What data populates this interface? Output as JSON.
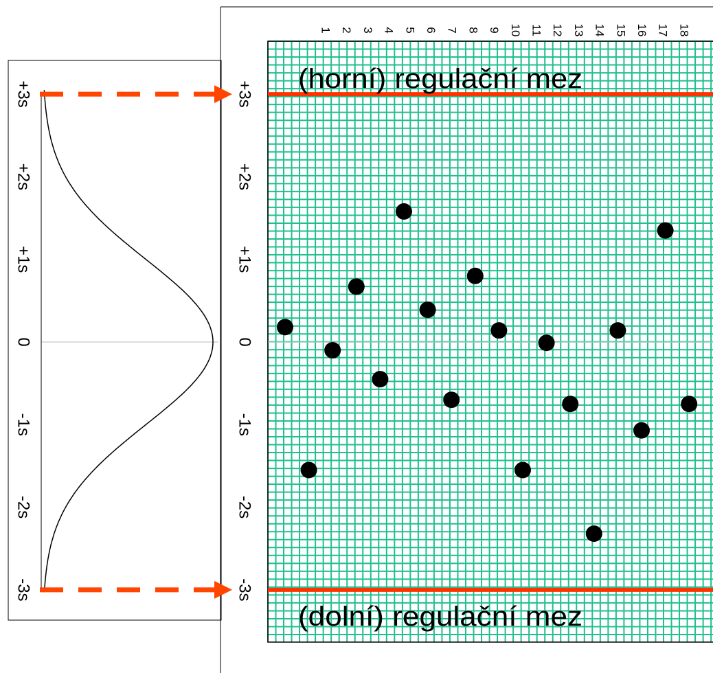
{
  "colors": {
    "grid": "#1fbf8f",
    "limit": "#ff3300",
    "arrow": "#ff4500",
    "point": "#000000",
    "curve": "#000000",
    "frame": "#000000"
  },
  "chart_data": [
    {
      "type": "scatter",
      "description_none": "",
      "x_tick_labels": [
        "1",
        "2",
        "3",
        "4",
        "5",
        "6",
        "7",
        "8",
        "9",
        "10",
        "11",
        "12",
        "13",
        "14",
        "15",
        "16",
        "17",
        "18"
      ],
      "y_tick_labels": [
        "+3s",
        "+2s",
        "+1s",
        "0",
        "-1s",
        "-2s",
        "-3s"
      ],
      "y_tick_values": [
        3,
        2,
        1,
        0,
        -1,
        -2,
        -3
      ],
      "x": [
        1,
        2,
        3,
        4,
        5,
        6,
        7,
        8,
        9,
        10,
        11,
        12,
        13,
        14,
        15,
        16,
        17,
        18
      ],
      "values": [
        0.18,
        -1.55,
        -0.1,
        0.67,
        -0.45,
        1.58,
        0.39,
        -0.7,
        0.8,
        0.14,
        -1.55,
        -0.01,
        -0.75,
        -2.32,
        0.14,
        -1.07,
        1.35,
        -0.75
      ],
      "ylim": [
        -3.55,
        3.6
      ],
      "xlim": [
        0.6,
        18.6
      ],
      "grid": true,
      "limits": [
        {
          "value": 3,
          "label": "(horní) regulační mez"
        },
        {
          "value": -3,
          "label": "(dolní) regulační mez"
        }
      ]
    },
    {
      "type": "line",
      "y_tick_labels": [
        "+3s",
        "+2s",
        "+1s",
        "0",
        "-1s",
        "-2s",
        "-3s"
      ],
      "y_tick_values": [
        3,
        2,
        1,
        0,
        -1,
        -2,
        -3
      ],
      "distribution": "normal density, rotated (value axis vertical)",
      "ylim": [
        -3.05,
        3.05
      ]
    }
  ]
}
